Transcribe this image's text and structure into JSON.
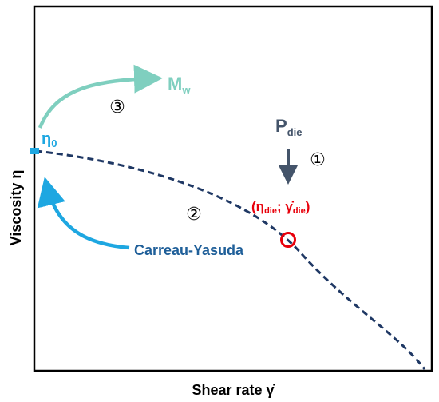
{
  "axes": {
    "xlabel": "Shear rate γ̇",
    "ylabel": "Viscosity η"
  },
  "labels": {
    "eta0": "η",
    "eta0_sub": "0",
    "mw": "M",
    "mw_sub": "w",
    "pdie": "P",
    "pdie_sub": "die",
    "point_open": "(",
    "point_eta": "η",
    "point_eta_sub": "die",
    "point_sep": "; ",
    "point_gamma": "γ̇",
    "point_gamma_sub": "die",
    "point_close": ")",
    "model": "Carreau-Yasuda"
  },
  "steps": {
    "step1": "①",
    "step2": "②",
    "step3": "③"
  },
  "colors": {
    "curve": "#1f3864",
    "eta0": "#1ea7e1",
    "mw_arrow": "#7fcfbf",
    "pdie_arrow": "#44546a",
    "point": "#e8000b",
    "model_arrow": "#1ea7e1",
    "model_label": "#1f5f99"
  }
}
